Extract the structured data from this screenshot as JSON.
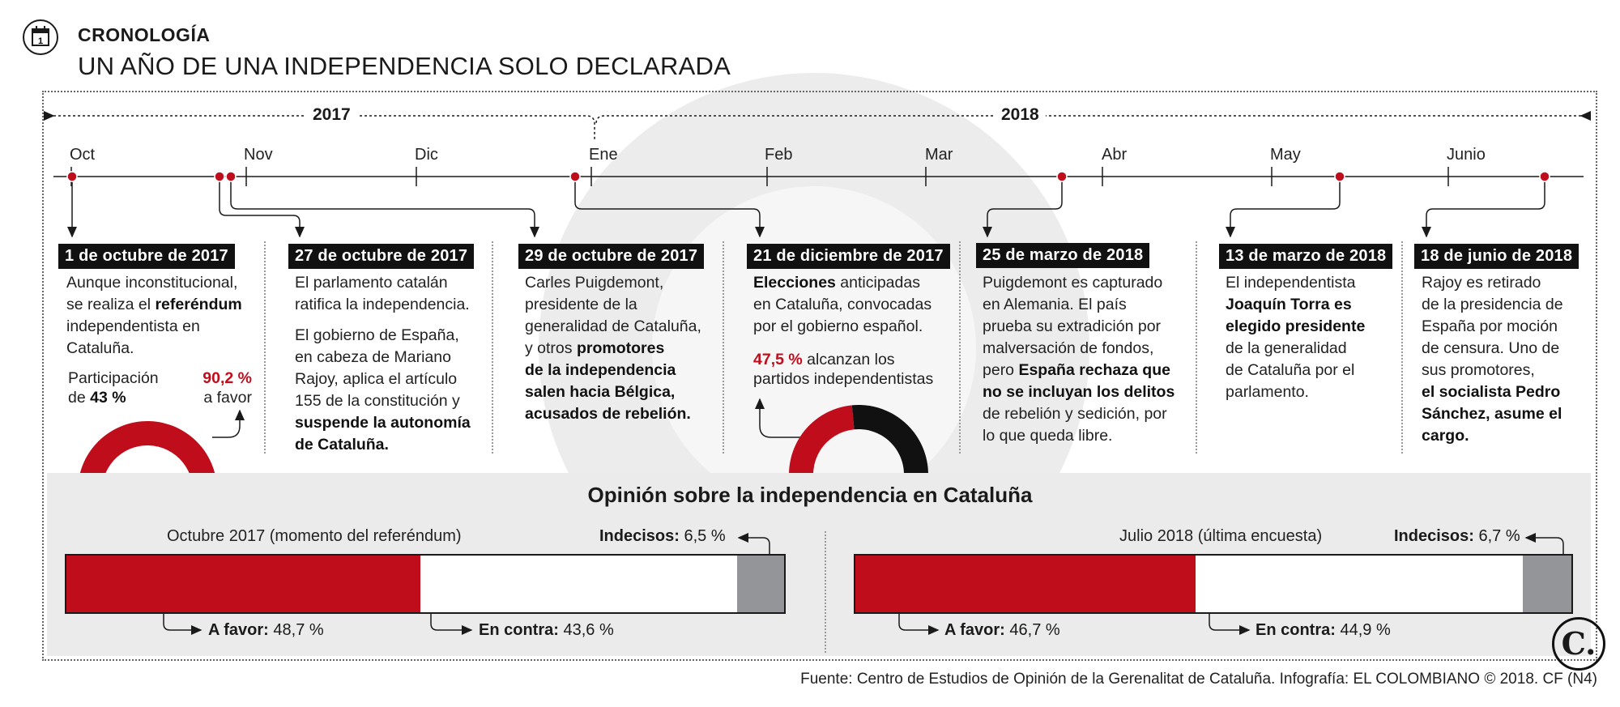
{
  "header": {
    "kicker": "CRONOLOGÍA",
    "headline": "UN AÑO DE UNA INDEPENDENCIA SOLO DECLARADA",
    "icon": "calendar-icon",
    "icon_number": "1"
  },
  "timeline": {
    "years": [
      "2017",
      "2018"
    ],
    "months": [
      "Oct",
      "Nov",
      "Dic",
      "Ene",
      "Feb",
      "Mar",
      "Abr",
      "May",
      "Junio"
    ]
  },
  "events": [
    {
      "date": "1 de octubre de 2017",
      "lines": [
        "Aunque inconstitucional,",
        "se realiza el |referéndum|",
        "independentista en",
        "Cataluña."
      ],
      "participation_label_1": "Participación",
      "participation_label_2": "de ",
      "participation_value": "43 %",
      "favor_value": "90,2 %",
      "favor_label": "a favor",
      "donut_favor_percent": 90.2
    },
    {
      "date": "27 de octubre de 2017",
      "lines": [
        "El parlamento catalán",
        "ratifica la independencia."
      ],
      "lines_2": [
        "El gobierno de España,",
        "en cabeza de Mariano",
        "Rajoy, aplica el artículo",
        "155 de la constitución y",
        "|suspende la autonomía|",
        "|de Cataluña.|"
      ]
    },
    {
      "date": "29 de octubre de 2017",
      "lines": [
        "Carles Puigdemont,",
        "presidente de la",
        "generalidad de Cataluña,",
        "y otros |promotores|",
        "|de la independencia|",
        "|salen hacia Bélgica,|",
        "|acusados de rebelión.|"
      ]
    },
    {
      "date": "21 de diciembre de 2017",
      "lines": [
        "|Elecciones| anticipadas",
        "en Cataluña, convocadas",
        "por el gobierno español."
      ],
      "result_value": "47,5 %",
      "result_text_1": " alcanzan los",
      "result_text_2": "partidos independentistas",
      "donut_percent": 47.5
    },
    {
      "date": "25 de marzo de 2018",
      "lines": [
        "Puigdemont es capturado",
        "en Alemania. El país",
        "prueba su extradición por",
        "malversación de fondos,",
        "pero |España rechaza que|",
        "|no se incluyan los delitos|",
        "de rebelión y sedición, por",
        "lo que queda libre."
      ]
    },
    {
      "date": "13 de marzo de 2018",
      "lines": [
        "El independentista",
        "|Joaquín Torra es|",
        "|elegido presidente|",
        "de la generalidad",
        "de Cataluña por el",
        "parlamento."
      ]
    },
    {
      "date": "18 de junio de 2018",
      "lines": [
        "Rajoy es retirado",
        "de la presidencia de",
        "España por moción",
        "de censura. Uno de",
        "sus promotores,",
        "|el socialista Pedro|",
        "|Sánchez, asume el|",
        "|cargo.|"
      ]
    }
  ],
  "opinion": {
    "title": "Opinión sobre la independencia en Cataluña",
    "polls": [
      {
        "title": "Octubre 2017 (momento del referéndum)",
        "favor_label": "A favor:",
        "favor_value": "48,7 %",
        "favor": 48.7,
        "contra_label": "En contra:",
        "contra_value": "43,6 %",
        "contra": 43.6,
        "undecided_label": "Indecisos:",
        "undecided_value": "6,5 %",
        "undecided": 6.5
      },
      {
        "title": "Julio 2018 (última encuesta)",
        "favor_label": "A favor:",
        "favor_value": "46,7 %",
        "favor": 46.7,
        "contra_label": "En contra:",
        "contra_value": "44,9 %",
        "contra": 44.9,
        "undecided_label": "Indecisos:",
        "undecided_value": "6,7 %",
        "undecided": 6.7
      }
    ]
  },
  "logo": "C.",
  "source": "Fuente: Centro de Estudios de Opinión de la Gerenalitat de Cataluña. Infografía: EL COLOMBIANO © 2018. CF (N4)",
  "colors": {
    "red": "#c00d1c",
    "black": "#111111",
    "grey": "#939598",
    "band": "#ebebeb"
  }
}
